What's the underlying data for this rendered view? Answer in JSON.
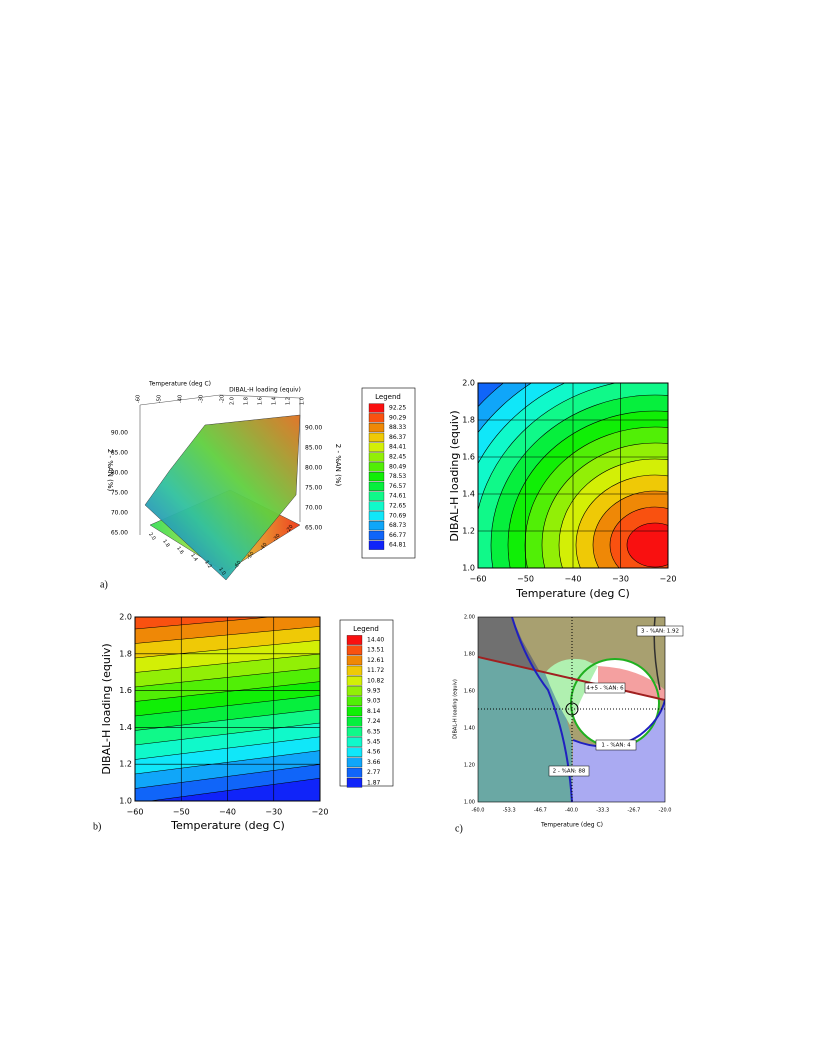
{
  "panel_a": {
    "label": "a)",
    "temperature_title": "Temperature (deg C)",
    "loading_title": "DIBAL-H loading (equiv)",
    "z_title_left": "2 - %AN (%)",
    "z_title_right": "2 - %AN (%)",
    "z_ticks": [
      "90.00",
      "85.00",
      "80.00",
      "75.00",
      "70.00",
      "65.00"
    ],
    "temperature_ticks": [
      "-60",
      "-50",
      "-40",
      "-30",
      "-20"
    ],
    "loading_ticks": [
      "2.0",
      "1.8",
      "1.6",
      "1.4",
      "1.2",
      "1.0"
    ]
  },
  "legend_a": {
    "title": "Legend",
    "entries": [
      "92.25",
      "90.29",
      "88.33",
      "86.37",
      "84.41",
      "82.45",
      "80.49",
      "78.53",
      "76.57",
      "74.61",
      "72.65",
      "70.69",
      "68.73",
      "66.77",
      "64.81"
    ]
  },
  "panel_top_right": {
    "x_title": "Temperature (deg C)",
    "y_title": "DIBAL-H loading (equiv)",
    "x_ticks": [
      "−60",
      "−50",
      "−40",
      "−30",
      "−20"
    ],
    "y_ticks": [
      "1.0",
      "1.2",
      "1.4",
      "1.6",
      "1.8",
      "2.0"
    ]
  },
  "panel_b": {
    "label": "b)",
    "x_title": "Temperature (deg C)",
    "y_title": "DIBAL-H loading (equiv)",
    "x_ticks": [
      "−60",
      "−50",
      "−40",
      "−30",
      "−20"
    ],
    "y_ticks": [
      "1.0",
      "1.2",
      "1.4",
      "1.6",
      "1.8",
      "2.0"
    ]
  },
  "legend_b": {
    "title": "Legend",
    "entries": [
      "14.40",
      "13.51",
      "12.61",
      "11.72",
      "10.82",
      "9.93",
      "9.03",
      "8.14",
      "7.24",
      "6.35",
      "5.45",
      "4.56",
      "3.66",
      "2.77",
      "1.87"
    ]
  },
  "panel_c": {
    "label": "c)",
    "x_title": "Temperature (deg C)",
    "y_title": "DIBAL-H loading (equiv)",
    "x_ticks": [
      "-60.0",
      "-53.3",
      "-46.7",
      "-40.0",
      "-33.3",
      "-26.7",
      "-20.0"
    ],
    "y_ticks": [
      "1.00",
      "1.20",
      "1.40",
      "1.60",
      "1.80",
      "2.00"
    ],
    "region_labels": [
      "3 - %AN: 1.92",
      "4+5 - %AN: 6",
      "1 - %AN: 4",
      "2 - %AN: 88"
    ]
  }
}
